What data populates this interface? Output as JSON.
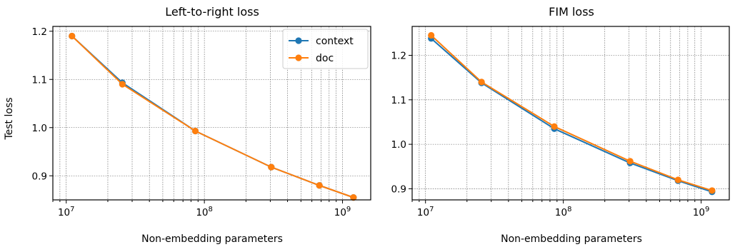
{
  "chart_data": [
    {
      "type": "line",
      "title": "Left-to-right loss",
      "xlabel": "Non-embedding parameters",
      "ylabel": "Test loss",
      "xscale": "log",
      "xlim": [
        8000000.0,
        1600000000.0
      ],
      "ylim": [
        0.85,
        1.21
      ],
      "xtick_labels": [
        "10^7",
        "10^8",
        "10^9"
      ],
      "yticks": [
        0.9,
        1.0,
        1.1,
        1.2
      ],
      "ytick_labels": [
        "0.9",
        "1.0",
        "1.1",
        "1.2"
      ],
      "grid": true,
      "legend": "top-right",
      "x": [
        11000000,
        25500000,
        86000000,
        305000000,
        680000000,
        1200000000
      ],
      "series": [
        {
          "name": "context",
          "color": "#1f77b4",
          "values": [
            1.19,
            1.093,
            0.993,
            0.918,
            0.88,
            0.855
          ]
        },
        {
          "name": "doc",
          "color": "#ff7f0e",
          "values": [
            1.19,
            1.09,
            0.993,
            0.918,
            0.88,
            0.855
          ]
        }
      ]
    },
    {
      "type": "line",
      "title": "FIM loss",
      "xlabel": "Non-embedding parameters",
      "ylabel": "",
      "xscale": "log",
      "xlim": [
        8000000.0,
        1600000000.0
      ],
      "ylim": [
        0.875,
        1.265
      ],
      "xtick_labels": [
        "10^7",
        "10^8",
        "10^9"
      ],
      "yticks": [
        0.9,
        1.0,
        1.1,
        1.2
      ],
      "ytick_labels": [
        "0.9",
        "1.0",
        "1.1",
        "1.2"
      ],
      "grid": true,
      "legend": "none",
      "x": [
        11000000,
        25500000,
        86000000,
        305000000,
        680000000,
        1200000000
      ],
      "series": [
        {
          "name": "context",
          "color": "#1f77b4",
          "values": [
            1.238,
            1.138,
            1.035,
            0.958,
            0.918,
            0.893
          ]
        },
        {
          "name": "doc",
          "color": "#ff7f0e",
          "values": [
            1.245,
            1.14,
            1.04,
            0.962,
            0.92,
            0.896
          ]
        }
      ]
    }
  ]
}
